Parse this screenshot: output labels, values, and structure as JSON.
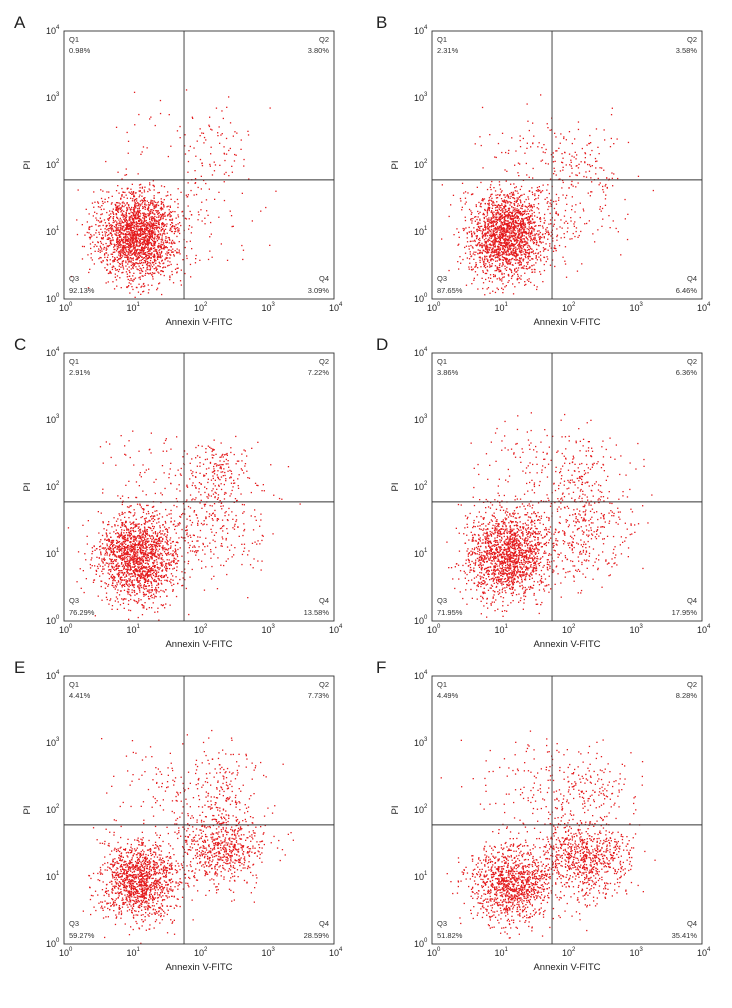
{
  "colors": {
    "dots": "#e41a1c",
    "axes": "#333333",
    "text": "#222222"
  },
  "chart_data": [
    {
      "type": "scatter",
      "panel": "A",
      "xlabel": "Annexin V-FITC",
      "ylabel": "PI",
      "xscale": "log",
      "yscale": "log",
      "xlim": [
        1,
        10000
      ],
      "ylim": [
        1,
        10000
      ],
      "x_ticks": [
        "10",
        "10",
        "10",
        "10",
        "10"
      ],
      "x_tick_exps": [
        "0",
        "1",
        "2",
        "3",
        "4"
      ],
      "y_ticks": [
        "10",
        "10",
        "10",
        "10",
        "10"
      ],
      "y_tick_exps": [
        "0",
        "1",
        "2",
        "3",
        "4"
      ],
      "gate": {
        "x": 60,
        "y": 60
      },
      "quadrants": [
        {
          "name": "Q1",
          "percent": "0.98%"
        },
        {
          "name": "Q2",
          "percent": "3.80%"
        },
        {
          "name": "Q3",
          "percent": "92.13%"
        },
        {
          "name": "Q4",
          "percent": "3.09%"
        }
      ],
      "populations": [
        {
          "center": [
            12,
            9
          ],
          "spread": [
            0.3,
            0.33
          ],
          "weight": 0.92
        },
        {
          "center": [
            120,
            25
          ],
          "spread": [
            0.4,
            0.45
          ],
          "weight": 0.04
        },
        {
          "center": [
            200,
            200
          ],
          "spread": [
            0.3,
            0.3
          ],
          "weight": 0.03
        },
        {
          "center": [
            20,
            300
          ],
          "spread": [
            0.45,
            0.35
          ],
          "weight": 0.01
        }
      ]
    },
    {
      "type": "scatter",
      "panel": "B",
      "xlabel": "Annexin V-FITC",
      "ylabel": "PI",
      "xscale": "log",
      "yscale": "log",
      "xlim": [
        1,
        10000
      ],
      "ylim": [
        1,
        10000
      ],
      "x_ticks": [
        "10",
        "10",
        "10",
        "10",
        "10"
      ],
      "x_tick_exps": [
        "0",
        "1",
        "2",
        "3",
        "4"
      ],
      "y_ticks": [
        "10",
        "10",
        "10",
        "10",
        "10"
      ],
      "y_tick_exps": [
        "0",
        "1",
        "2",
        "3",
        "4"
      ],
      "gate": {
        "x": 60,
        "y": 60
      },
      "quadrants": [
        {
          "name": "Q1",
          "percent": "2.31%"
        },
        {
          "name": "Q2",
          "percent": "3.58%"
        },
        {
          "name": "Q3",
          "percent": "87.65%"
        },
        {
          "name": "Q4",
          "percent": "6.46%"
        }
      ],
      "populations": [
        {
          "center": [
            13,
            9
          ],
          "spread": [
            0.3,
            0.33
          ],
          "weight": 0.87
        },
        {
          "center": [
            130,
            30
          ],
          "spread": [
            0.4,
            0.4
          ],
          "weight": 0.07
        },
        {
          "center": [
            150,
            150
          ],
          "spread": [
            0.35,
            0.3
          ],
          "weight": 0.035
        },
        {
          "center": [
            20,
            200
          ],
          "spread": [
            0.4,
            0.35
          ],
          "weight": 0.025
        }
      ]
    },
    {
      "type": "scatter",
      "panel": "C",
      "xlabel": "Annexin V-FITC",
      "ylabel": "PI",
      "xscale": "log",
      "yscale": "log",
      "xlim": [
        1,
        10000
      ],
      "ylim": [
        1,
        10000
      ],
      "x_ticks": [
        "10",
        "10",
        "10",
        "10",
        "10"
      ],
      "x_tick_exps": [
        "0",
        "1",
        "2",
        "3",
        "4"
      ],
      "y_ticks": [
        "10",
        "10",
        "10",
        "10",
        "10"
      ],
      "y_tick_exps": [
        "0",
        "1",
        "2",
        "3",
        "4"
      ],
      "gate": {
        "x": 60,
        "y": 60
      },
      "quadrants": [
        {
          "name": "Q1",
          "percent": "2.91%"
        },
        {
          "name": "Q2",
          "percent": "7.22%"
        },
        {
          "name": "Q3",
          "percent": "76.29%"
        },
        {
          "name": "Q4",
          "percent": "13.58%"
        }
      ],
      "populations": [
        {
          "center": [
            12,
            9
          ],
          "spread": [
            0.3,
            0.33
          ],
          "weight": 0.76
        },
        {
          "center": [
            150,
            30
          ],
          "spread": [
            0.4,
            0.4
          ],
          "weight": 0.14
        },
        {
          "center": [
            200,
            180
          ],
          "spread": [
            0.3,
            0.25
          ],
          "weight": 0.07
        },
        {
          "center": [
            20,
            200
          ],
          "spread": [
            0.4,
            0.35
          ],
          "weight": 0.03
        }
      ]
    },
    {
      "type": "scatter",
      "panel": "D",
      "xlabel": "Annexin V-FITC",
      "ylabel": "PI",
      "xscale": "log",
      "yscale": "log",
      "xlim": [
        1,
        10000
      ],
      "ylim": [
        1,
        10000
      ],
      "x_ticks": [
        "10",
        "10",
        "10",
        "10",
        "10"
      ],
      "x_tick_exps": [
        "0",
        "1",
        "2",
        "3",
        "4"
      ],
      "y_ticks": [
        "10",
        "10",
        "10",
        "10",
        "10"
      ],
      "y_tick_exps": [
        "0",
        "1",
        "2",
        "3",
        "4"
      ],
      "gate": {
        "x": 60,
        "y": 60
      },
      "quadrants": [
        {
          "name": "Q1",
          "percent": "3.86%"
        },
        {
          "name": "Q2",
          "percent": "6.36%"
        },
        {
          "name": "Q3",
          "percent": "71.95%"
        },
        {
          "name": "Q4",
          "percent": "17.95%"
        }
      ],
      "populations": [
        {
          "center": [
            13,
            10
          ],
          "spread": [
            0.3,
            0.33
          ],
          "weight": 0.72
        },
        {
          "center": [
            160,
            25
          ],
          "spread": [
            0.4,
            0.4
          ],
          "weight": 0.18
        },
        {
          "center": [
            180,
            180
          ],
          "spread": [
            0.35,
            0.3
          ],
          "weight": 0.06
        },
        {
          "center": [
            25,
            250
          ],
          "spread": [
            0.4,
            0.35
          ],
          "weight": 0.04
        }
      ]
    },
    {
      "type": "scatter",
      "panel": "E",
      "xlabel": "Annexin V-FITC",
      "ylabel": "PI",
      "xscale": "log",
      "yscale": "log",
      "xlim": [
        1,
        10000
      ],
      "ylim": [
        1,
        10000
      ],
      "x_ticks": [
        "10",
        "10",
        "10",
        "10",
        "10"
      ],
      "x_tick_exps": [
        "0",
        "1",
        "2",
        "3",
        "4"
      ],
      "y_ticks": [
        "10",
        "10",
        "10",
        "10",
        "10"
      ],
      "y_tick_exps": [
        "0",
        "1",
        "2",
        "3",
        "4"
      ],
      "gate": {
        "x": 60,
        "y": 60
      },
      "quadrants": [
        {
          "name": "Q1",
          "percent": "4.41%"
        },
        {
          "name": "Q2",
          "percent": "7.73%"
        },
        {
          "name": "Q3",
          "percent": "59.27%"
        },
        {
          "name": "Q4",
          "percent": "28.59%"
        }
      ],
      "populations": [
        {
          "center": [
            13,
            9
          ],
          "spread": [
            0.28,
            0.3
          ],
          "weight": 0.59
        },
        {
          "center": [
            220,
            28
          ],
          "spread": [
            0.3,
            0.3
          ],
          "weight": 0.29
        },
        {
          "center": [
            200,
            200
          ],
          "spread": [
            0.35,
            0.3
          ],
          "weight": 0.08
        },
        {
          "center": [
            25,
            250
          ],
          "spread": [
            0.4,
            0.35
          ],
          "weight": 0.04
        }
      ]
    },
    {
      "type": "scatter",
      "panel": "F",
      "xlabel": "Annexin V-FITC",
      "ylabel": "PI",
      "xscale": "log",
      "yscale": "log",
      "xlim": [
        1,
        10000
      ],
      "ylim": [
        1,
        10000
      ],
      "x_ticks": [
        "10",
        "10",
        "10",
        "10",
        "10"
      ],
      "x_tick_exps": [
        "0",
        "1",
        "2",
        "3",
        "4"
      ],
      "y_ticks": [
        "10",
        "10",
        "10",
        "10",
        "10"
      ],
      "y_tick_exps": [
        "0",
        "1",
        "2",
        "3",
        "4"
      ],
      "gate": {
        "x": 60,
        "y": 60
      },
      "quadrants": [
        {
          "name": "Q1",
          "percent": "4.49%"
        },
        {
          "name": "Q2",
          "percent": "8.28%"
        },
        {
          "name": "Q3",
          "percent": "51.82%"
        },
        {
          "name": "Q4",
          "percent": "35.41%"
        }
      ],
      "populations": [
        {
          "center": [
            15,
            8
          ],
          "spread": [
            0.3,
            0.3
          ],
          "weight": 0.52
        },
        {
          "center": [
            180,
            20
          ],
          "spread": [
            0.32,
            0.3
          ],
          "weight": 0.35
        },
        {
          "center": [
            180,
            180
          ],
          "spread": [
            0.35,
            0.3
          ],
          "weight": 0.085
        },
        {
          "center": [
            25,
            250
          ],
          "spread": [
            0.4,
            0.35
          ],
          "weight": 0.045
        }
      ]
    }
  ]
}
